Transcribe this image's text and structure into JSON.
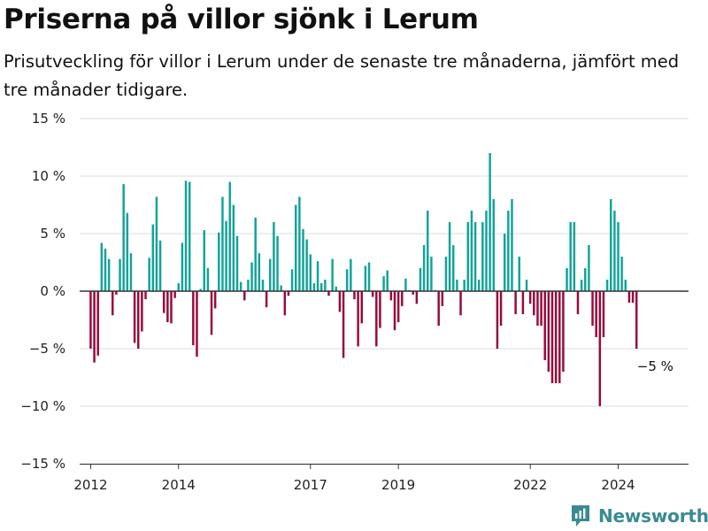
{
  "header": {
    "title": "Priserna på villor sjönk i Lerum",
    "subtitle": "Prisutveckling för villor i Lerum under de senaste tre månaderna, jämfört med tre månader tidigare."
  },
  "brand": {
    "name": "Newsworthy"
  },
  "colors": {
    "positive": "#12a39a",
    "negative": "#970a3d",
    "grid": "#dddddd",
    "zero": "#333333",
    "logo": "#3a8a92"
  },
  "chart_data": {
    "type": "bar",
    "ylim": [
      -15,
      15
    ],
    "y_ticks": [
      -15,
      -10,
      -5,
      0,
      5,
      10,
      15
    ],
    "y_tick_labels": [
      "−15 %",
      "−10 %",
      "−5 %",
      "0 %",
      "5 %",
      "10 %",
      "15 %"
    ],
    "x_ticks": [
      2012,
      2014,
      2017,
      2019,
      2022,
      2024
    ],
    "x_tick_labels": [
      "2012",
      "2014",
      "2017",
      "2019",
      "2022",
      "2024"
    ],
    "xlim": [
      2011.75,
      2025.6
    ],
    "grid": true,
    "annotations": [
      {
        "text": "−5 %",
        "x": 2024.83,
        "y": -5
      }
    ],
    "start_year": 2012,
    "months_per_step": 1,
    "values": [
      -5,
      -6.2,
      -5.6,
      4.2,
      3.7,
      2.8,
      -2.1,
      -0.3,
      2.8,
      9.3,
      6.8,
      3.3,
      -4.5,
      -5,
      -3.5,
      -0.7,
      2.9,
      5.8,
      8.2,
      4.4,
      -1.9,
      -2.7,
      -2.8,
      -0.6,
      0.7,
      4.2,
      9.6,
      9.5,
      -4.7,
      -5.7,
      0.2,
      5.3,
      2,
      -3.8,
      -1.5,
      5.1,
      8.2,
      6.1,
      9.5,
      7.5,
      4.8,
      0.8,
      -0.8,
      1,
      2.5,
      6.4,
      3.3,
      1,
      -1.4,
      2.8,
      6,
      4.8,
      0.5,
      -2.1,
      -0.4,
      1.9,
      7.5,
      8.2,
      5.4,
      4.5,
      3.2,
      0.7,
      2.6,
      0.7,
      1,
      -0.4,
      2.8,
      0.4,
      -1.8,
      -5.8,
      1.9,
      2.8,
      -0.7,
      -4.8,
      -2.8,
      2.2,
      2.5,
      -0.5,
      -4.8,
      -3.2,
      1.3,
      1.8,
      -0.8,
      -3.4,
      -2.7,
      -1.3,
      1.1,
      0.1,
      -0.3,
      -1.1,
      2,
      4,
      7,
      3,
      0.1,
      -3,
      -1.3,
      3,
      6,
      4,
      1,
      -2.1,
      1,
      6,
      7,
      6,
      1,
      6,
      7,
      12,
      8,
      -5,
      -3,
      5,
      7,
      8,
      -2,
      3,
      -2,
      1,
      -1.1,
      -2.1,
      -3,
      -3,
      -6,
      -7,
      -8,
      -8,
      -8,
      -7,
      2,
      6,
      6,
      -2,
      1,
      2,
      4,
      -3,
      -4,
      -10,
      -4,
      1,
      8,
      7,
      6,
      3,
      1,
      -1,
      -1,
      -5
    ]
  }
}
